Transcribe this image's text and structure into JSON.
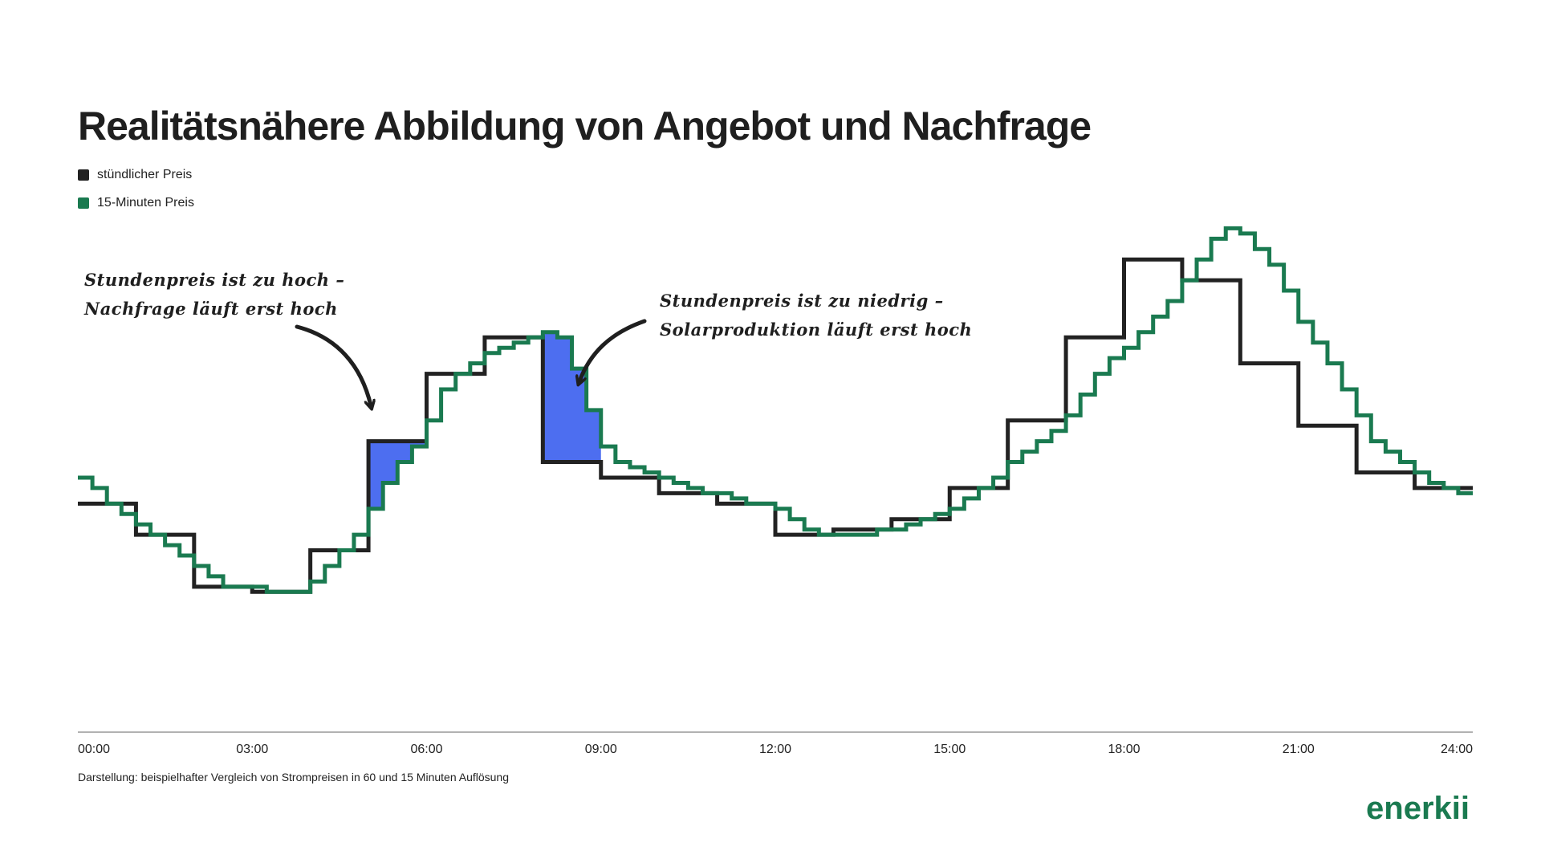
{
  "title": "Realitätsnähere Abbildung von Angebot und Nachfrage",
  "legend": [
    {
      "label": "stündlicher Preis",
      "color": "#222222"
    },
    {
      "label": "15-Minuten Preis",
      "color": "#1a7a50"
    }
  ],
  "annotations": {
    "left": [
      "Stundenpreis ist zu hoch –",
      "Nachfrage läuft erst hoch"
    ],
    "right": [
      "Stundenpreis ist zu niedrig –",
      "Solarproduktion läuft erst hoch"
    ]
  },
  "caption": "Darstellung: beispielhafter Vergleich von Strompreisen in 60 und 15 Minuten Auflösung",
  "brand": "enerkii",
  "colors": {
    "hourly": "#222222",
    "quarter": "#1a7a50",
    "highlight": "#4d6ef0"
  },
  "chart_data": {
    "type": "line",
    "step": true,
    "xlim": [
      0,
      24
    ],
    "x_ticks": [
      "00:00",
      "03:00",
      "06:00",
      "09:00",
      "12:00",
      "15:00",
      "18:00",
      "21:00",
      "24:00"
    ],
    "x_tick_values": [
      0,
      3,
      6,
      9,
      12,
      15,
      18,
      21,
      24
    ],
    "ylim": [
      0,
      100
    ],
    "grid": false,
    "legend_position": "top-left",
    "series": [
      {
        "name": "stündlicher Preis",
        "values": [
          44,
          38,
          28,
          27,
          35,
          56,
          69,
          76,
          52,
          49,
          46,
          44,
          38,
          39,
          41,
          47,
          60,
          76,
          91,
          87,
          71,
          59,
          50,
          47
        ]
      },
      {
        "name": "15-Minuten Preis",
        "values": [
          49,
          47,
          44,
          42,
          40,
          38,
          36,
          34,
          32,
          30,
          28,
          28,
          28,
          27,
          27,
          27,
          29,
          32,
          35,
          38,
          43,
          48,
          52,
          55,
          60,
          66,
          69,
          71,
          73,
          74,
          75,
          76,
          77,
          76,
          70,
          62,
          55,
          52,
          51,
          50,
          49,
          48,
          47,
          46,
          46,
          45,
          44,
          44,
          43,
          41,
          39,
          38,
          38,
          38,
          38,
          39,
          39,
          40,
          41,
          42,
          43,
          45,
          47,
          49,
          52,
          54,
          56,
          58,
          61,
          65,
          69,
          72,
          74,
          77,
          80,
          83,
          87,
          91,
          95,
          97,
          96,
          93,
          90,
          85,
          79,
          75,
          71,
          66,
          61,
          56,
          54,
          52,
          50,
          48,
          47,
          46
        ]
      }
    ]
  }
}
